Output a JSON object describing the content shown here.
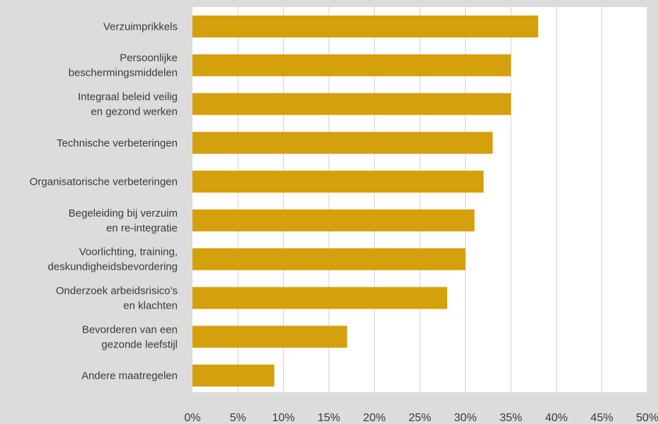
{
  "chart_data": {
    "type": "bar",
    "orientation": "horizontal",
    "categories": [
      [
        "Verzuimprikkels"
      ],
      [
        "Persoonlijke",
        "beschermingsmiddelen"
      ],
      [
        "Integraal beleid veilig",
        "en gezond werken"
      ],
      [
        "Technische verbeteringen"
      ],
      [
        "Organisatorische verbeteringen"
      ],
      [
        "Begeleiding bij verzuim",
        "en re-integratie"
      ],
      [
        "Voorlichting, training,",
        "deskundigheidsbevordering"
      ],
      [
        "Onderzoek arbeidsrisico's",
        "en klachten"
      ],
      [
        "Bevorderen van een",
        "gezonde leefstijl"
      ],
      [
        "Andere maatregelen"
      ]
    ],
    "values": [
      38,
      35,
      35,
      33,
      32,
      31,
      30,
      28,
      17,
      9
    ],
    "xlim": [
      0,
      50
    ],
    "xticks": [
      "0%",
      "5%",
      "10%",
      "15%",
      "20%",
      "25%",
      "30%",
      "35%",
      "40%",
      "45%",
      "50%"
    ],
    "grid": true,
    "colors": {
      "bar": "#d4a00c",
      "plot_background": "#ffffff",
      "page_background": "#dcdcdc",
      "grid": "#d0d0d0",
      "text": "#3a3a3a"
    }
  }
}
